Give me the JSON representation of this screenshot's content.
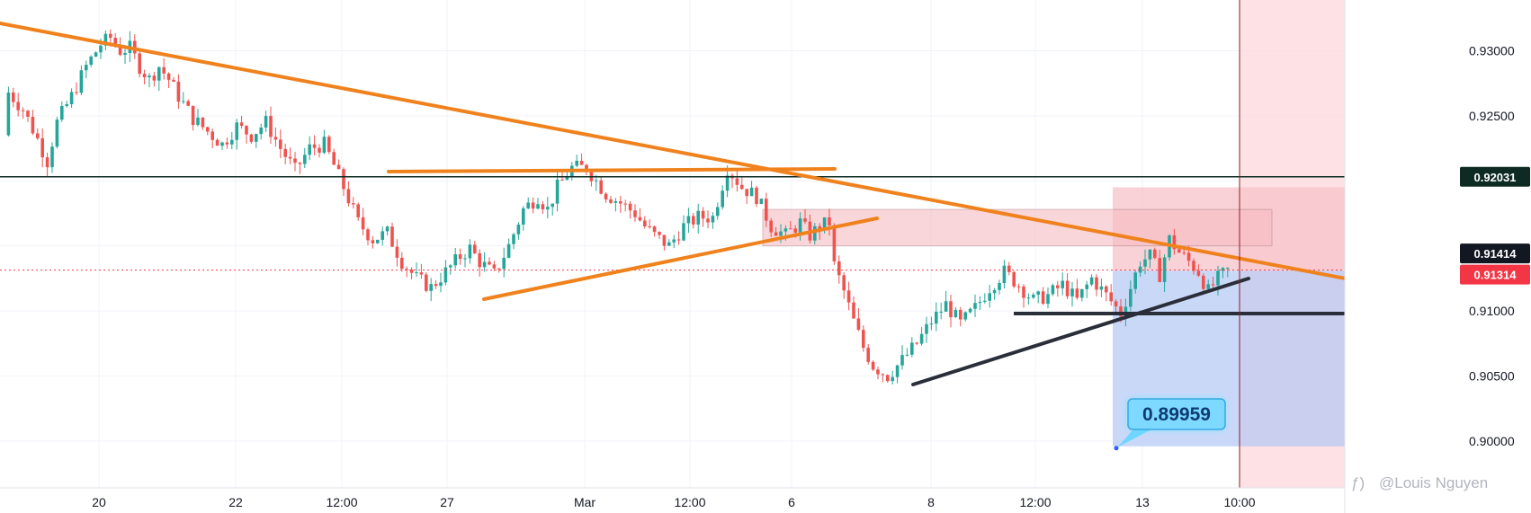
{
  "chart_data": {
    "type": "candlestick",
    "x_ticks": [
      "20",
      "22",
      "12:00",
      "27",
      "Mar",
      "12:00",
      "6",
      "8",
      "12:00",
      "13",
      "10:00"
    ],
    "y_ticks": [
      0.93,
      0.925,
      0.92,
      0.915,
      0.91,
      0.905,
      0.9
    ],
    "y_tick_labels": [
      "0.93000",
      "0.92500",
      "0.92031",
      "0.91414",
      "0.91000",
      "0.90500",
      "0.90000"
    ],
    "ylim": [
      0.8964,
      0.9339
    ],
    "grid": true,
    "price_labels": [
      {
        "text": "0.92031",
        "value": 0.92031,
        "color": "#0d2b22"
      },
      {
        "text": "0.91414",
        "value": 0.91414,
        "color": "#131722"
      },
      {
        "text": "0.91314",
        "value": 0.91314,
        "color": "#f23645"
      }
    ],
    "callout": {
      "text": "0.89959",
      "value": 0.89959
    },
    "watermark": "@Louis Nguyen",
    "colors": {
      "up": "#26a69a",
      "down": "#ef5350",
      "trendline": "#f0821e",
      "support": "#2a2e39",
      "resistance_zone": "#f7c3c9",
      "target_zone": "#b3c8f5"
    },
    "price_path": [
      {
        "t": 0,
        "p": 0.9235
      },
      {
        "t": 0.5,
        "p": 0.9268
      },
      {
        "t": 2,
        "p": 0.9255
      },
      {
        "t": 3.5,
        "p": 0.9232
      },
      {
        "t": 4.5,
        "p": 0.9215
      },
      {
        "t": 5.5,
        "p": 0.9245
      },
      {
        "t": 7,
        "p": 0.9265
      },
      {
        "t": 8.5,
        "p": 0.9288
      },
      {
        "t": 10,
        "p": 0.9305
      },
      {
        "t": 11,
        "p": 0.931
      },
      {
        "t": 12,
        "p": 0.93
      },
      {
        "t": 13,
        "p": 0.9302
      },
      {
        "t": 14,
        "p": 0.9288
      },
      {
        "t": 15,
        "p": 0.9278
      },
      {
        "t": 16,
        "p": 0.9288
      },
      {
        "t": 17,
        "p": 0.9278
      },
      {
        "t": 18,
        "p": 0.9265
      },
      {
        "t": 19.5,
        "p": 0.9248
      },
      {
        "t": 21,
        "p": 0.9238
      },
      {
        "t": 22.5,
        "p": 0.9228
      },
      {
        "t": 24,
        "p": 0.9242
      },
      {
        "t": 25.5,
        "p": 0.9235
      },
      {
        "t": 27,
        "p": 0.9245
      },
      {
        "t": 28.5,
        "p": 0.9225
      },
      {
        "t": 30,
        "p": 0.9208
      },
      {
        "t": 31.5,
        "p": 0.9225
      },
      {
        "t": 33,
        "p": 0.9228
      },
      {
        "t": 34,
        "p": 0.9212
      },
      {
        "t": 35,
        "p": 0.9195
      },
      {
        "t": 36.5,
        "p": 0.9168
      },
      {
        "t": 38,
        "p": 0.9155
      },
      {
        "t": 39.5,
        "p": 0.916
      },
      {
        "t": 41,
        "p": 0.9138
      },
      {
        "t": 42.5,
        "p": 0.9125
      },
      {
        "t": 44,
        "p": 0.9118
      },
      {
        "t": 45.5,
        "p": 0.913
      },
      {
        "t": 47,
        "p": 0.9142
      },
      {
        "t": 48,
        "p": 0.9148
      },
      {
        "t": 49,
        "p": 0.9138
      },
      {
        "t": 50.5,
        "p": 0.9128
      },
      {
        "t": 52,
        "p": 0.915
      },
      {
        "t": 53.5,
        "p": 0.9178
      },
      {
        "t": 55,
        "p": 0.9188
      },
      {
        "t": 56,
        "p": 0.9178
      },
      {
        "t": 57,
        "p": 0.9195
      },
      {
        "t": 58.5,
        "p": 0.921
      },
      {
        "t": 60,
        "p": 0.921
      },
      {
        "t": 61,
        "p": 0.92
      },
      {
        "t": 62,
        "p": 0.919
      },
      {
        "t": 63.5,
        "p": 0.9183
      },
      {
        "t": 65,
        "p": 0.9175
      },
      {
        "t": 66,
        "p": 0.9165
      },
      {
        "t": 67,
        "p": 0.9158
      },
      {
        "t": 68.5,
        "p": 0.915
      },
      {
        "t": 70,
        "p": 0.9165
      },
      {
        "t": 71.5,
        "p": 0.9172
      },
      {
        "t": 73,
        "p": 0.9172
      },
      {
        "t": 74.5,
        "p": 0.921
      },
      {
        "t": 76,
        "p": 0.9195
      },
      {
        "t": 77.5,
        "p": 0.9188
      },
      {
        "t": 79,
        "p": 0.9165
      },
      {
        "t": 80.5,
        "p": 0.9158
      },
      {
        "t": 82,
        "p": 0.9168
      },
      {
        "t": 83,
        "p": 0.9158
      },
      {
        "t": 84,
        "p": 0.9165
      },
      {
        "t": 85,
        "p": 0.9168
      },
      {
        "t": 85.5,
        "p": 0.9135
      },
      {
        "t": 86.5,
        "p": 0.9115
      },
      {
        "t": 87.5,
        "p": 0.9092
      },
      {
        "t": 88.5,
        "p": 0.9072
      },
      {
        "t": 89.5,
        "p": 0.9058
      },
      {
        "t": 91,
        "p": 0.905
      },
      {
        "t": 92.5,
        "p": 0.9062
      },
      {
        "t": 94,
        "p": 0.9075
      },
      {
        "t": 95.5,
        "p": 0.9092
      },
      {
        "t": 97,
        "p": 0.9105
      },
      {
        "t": 98.5,
        "p": 0.909
      },
      {
        "t": 100,
        "p": 0.9102
      },
      {
        "t": 101.5,
        "p": 0.9118
      },
      {
        "t": 103,
        "p": 0.913
      },
      {
        "t": 104.5,
        "p": 0.912
      },
      {
        "t": 106,
        "p": 0.9108
      },
      {
        "t": 107.5,
        "p": 0.9112
      },
      {
        "t": 109,
        "p": 0.912
      },
      {
        "t": 110.5,
        "p": 0.9108
      },
      {
        "t": 112,
        "p": 0.9125
      },
      {
        "t": 113.5,
        "p": 0.9112
      },
      {
        "t": 115,
        "p": 0.9098
      },
      {
        "t": 116,
        "p": 0.9118
      },
      {
        "t": 117,
        "p": 0.9138
      },
      {
        "t": 118,
        "p": 0.9142
      },
      {
        "t": 119,
        "p": 0.9128
      },
      {
        "t": 120,
        "p": 0.9155
      },
      {
        "t": 121,
        "p": 0.9145
      },
      {
        "t": 122,
        "p": 0.9138
      },
      {
        "t": 123,
        "p": 0.913
      },
      {
        "t": 124,
        "p": 0.9115
      },
      {
        "t": 125,
        "p": 0.9125
      },
      {
        "t": 126,
        "p": 0.9131
      }
    ]
  }
}
